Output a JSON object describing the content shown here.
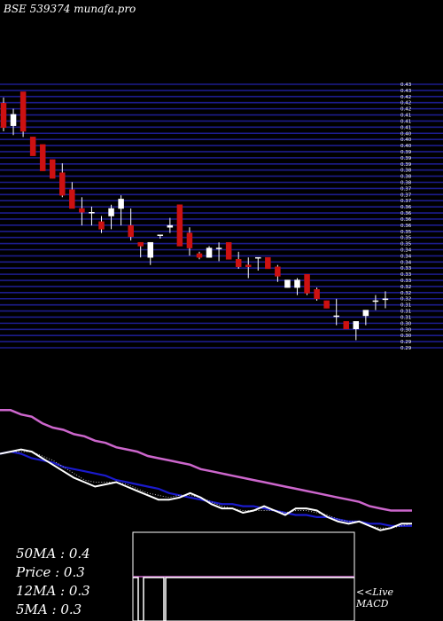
{
  "header": {
    "title": "BSE 539374  munafa.pro"
  },
  "stats": {
    "ma50": "50MA : 0.4",
    "price": "Price   : 0.3",
    "ma12": "12MA : 0.3",
    "ma5": "5MA : 0.3"
  },
  "macd_label": {
    "line1": "<<Live",
    "line2": "MACD"
  },
  "colors": {
    "background": "#000000",
    "gridline": "#1c1c8c",
    "up_candle": "#ffffff",
    "down_candle": "#cc1111",
    "ma_long": "#cc66cc",
    "ma_mid": "#1a1acc",
    "ma_short": "#ffffff"
  },
  "chart_data": {
    "type": "candlestick",
    "title": "BSE 539374",
    "price_range": [
      0.29,
      0.43
    ],
    "candles": [
      {
        "o": 0.42,
        "h": 0.423,
        "l": 0.405,
        "c": 0.407
      },
      {
        "o": 0.408,
        "h": 0.417,
        "l": 0.403,
        "c": 0.414
      },
      {
        "o": 0.426,
        "h": 0.426,
        "l": 0.402,
        "c": 0.405
      },
      {
        "o": 0.402,
        "h": 0.402,
        "l": 0.392,
        "c": 0.392
      },
      {
        "o": 0.398,
        "h": 0.398,
        "l": 0.384,
        "c": 0.384
      },
      {
        "o": 0.39,
        "h": 0.39,
        "l": 0.38,
        "c": 0.38
      },
      {
        "o": 0.383,
        "h": 0.388,
        "l": 0.37,
        "c": 0.371
      },
      {
        "o": 0.374,
        "h": 0.378,
        "l": 0.364,
        "c": 0.364
      },
      {
        "o": 0.364,
        "h": 0.37,
        "l": 0.355,
        "c": 0.362
      },
      {
        "o": 0.362,
        "h": 0.365,
        "l": 0.355,
        "c": 0.362
      },
      {
        "o": 0.357,
        "h": 0.36,
        "l": 0.351,
        "c": 0.353
      },
      {
        "o": 0.36,
        "h": 0.366,
        "l": 0.353,
        "c": 0.364
      },
      {
        "o": 0.364,
        "h": 0.371,
        "l": 0.355,
        "c": 0.369
      },
      {
        "o": 0.355,
        "h": 0.364,
        "l": 0.347,
        "c": 0.349
      },
      {
        "o": 0.346,
        "h": 0.346,
        "l": 0.338,
        "c": 0.344
      },
      {
        "o": 0.338,
        "h": 0.346,
        "l": 0.334,
        "c": 0.346
      },
      {
        "o": 0.35,
        "h": 0.35,
        "l": 0.348,
        "c": 0.35
      },
      {
        "o": 0.354,
        "h": 0.359,
        "l": 0.351,
        "c": 0.355
      },
      {
        "o": 0.366,
        "h": 0.366,
        "l": 0.344,
        "c": 0.344
      },
      {
        "o": 0.351,
        "h": 0.354,
        "l": 0.339,
        "c": 0.343
      },
      {
        "o": 0.34,
        "h": 0.341,
        "l": 0.337,
        "c": 0.338
      },
      {
        "o": 0.338,
        "h": 0.344,
        "l": 0.338,
        "c": 0.343
      },
      {
        "o": 0.343,
        "h": 0.346,
        "l": 0.336,
        "c": 0.343
      },
      {
        "o": 0.346,
        "h": 0.346,
        "l": 0.337,
        "c": 0.337
      },
      {
        "o": 0.337,
        "h": 0.341,
        "l": 0.332,
        "c": 0.333
      },
      {
        "o": 0.334,
        "h": 0.338,
        "l": 0.327,
        "c": 0.333
      },
      {
        "o": 0.338,
        "h": 0.338,
        "l": 0.331,
        "c": 0.338
      },
      {
        "o": 0.338,
        "h": 0.338,
        "l": 0.332,
        "c": 0.332
      },
      {
        "o": 0.333,
        "h": 0.334,
        "l": 0.325,
        "c": 0.328
      },
      {
        "o": 0.322,
        "h": 0.326,
        "l": 0.322,
        "c": 0.326
      },
      {
        "o": 0.322,
        "h": 0.327,
        "l": 0.318,
        "c": 0.326
      },
      {
        "o": 0.329,
        "h": 0.329,
        "l": 0.318,
        "c": 0.319
      },
      {
        "o": 0.321,
        "h": 0.322,
        "l": 0.315,
        "c": 0.316
      },
      {
        "o": 0.315,
        "h": 0.315,
        "l": 0.311,
        "c": 0.311
      },
      {
        "o": 0.307,
        "h": 0.316,
        "l": 0.302,
        "c": 0.307
      },
      {
        "o": 0.304,
        "h": 0.304,
        "l": 0.3,
        "c": 0.3
      },
      {
        "o": 0.3,
        "h": 0.304,
        "l": 0.294,
        "c": 0.304
      },
      {
        "o": 0.307,
        "h": 0.31,
        "l": 0.302,
        "c": 0.31
      },
      {
        "o": 0.315,
        "h": 0.318,
        "l": 0.31,
        "c": 0.315
      },
      {
        "o": 0.316,
        "h": 0.32,
        "l": 0.311,
        "c": 0.316
      }
    ],
    "ma_long": [
      0.305,
      0.305,
      0.303,
      0.302,
      0.299,
      0.297,
      0.296,
      0.294,
      0.293,
      0.291,
      0.29,
      0.288,
      0.287,
      0.286,
      0.284,
      0.283,
      0.282,
      0.281,
      0.28,
      0.278,
      0.277,
      0.276,
      0.275,
      0.274,
      0.273,
      0.272,
      0.271,
      0.27,
      0.269,
      0.268,
      0.267,
      0.266,
      0.265,
      0.264,
      0.263,
      0.261,
      0.26,
      0.259,
      0.259,
      0.259
    ],
    "ma_mid": [
      0.285,
      0.286,
      0.285,
      0.283,
      0.282,
      0.281,
      0.279,
      0.278,
      0.277,
      0.276,
      0.275,
      0.273,
      0.272,
      0.271,
      0.27,
      0.269,
      0.267,
      0.266,
      0.265,
      0.264,
      0.263,
      0.262,
      0.262,
      0.261,
      0.261,
      0.26,
      0.259,
      0.258,
      0.257,
      0.257,
      0.256,
      0.256,
      0.255,
      0.254,
      0.254,
      0.253,
      0.253,
      0.252,
      0.252,
      0.252
    ],
    "ma_short": [
      0.285,
      0.286,
      0.287,
      0.286,
      0.283,
      0.28,
      0.277,
      0.274,
      0.272,
      0.27,
      0.271,
      0.272,
      0.27,
      0.268,
      0.266,
      0.264,
      0.264,
      0.265,
      0.267,
      0.265,
      0.262,
      0.26,
      0.26,
      0.258,
      0.259,
      0.261,
      0.259,
      0.257,
      0.26,
      0.26,
      0.259,
      0.256,
      0.254,
      0.253,
      0.254,
      0.252,
      0.25,
      0.251,
      0.253,
      0.253
    ],
    "ma_short_dotted": [
      0.285,
      0.286,
      0.286,
      0.286,
      0.284,
      0.282,
      0.279,
      0.276,
      0.273,
      0.272,
      0.272,
      0.272,
      0.271,
      0.269,
      0.267,
      0.266,
      0.265,
      0.266,
      0.266,
      0.265,
      0.263,
      0.261,
      0.26,
      0.259,
      0.259,
      0.259,
      0.259,
      0.258,
      0.259,
      0.259,
      0.258,
      0.257,
      0.255,
      0.254,
      0.254,
      0.252,
      0.251,
      0.251,
      0.252,
      0.253
    ],
    "macd_signal": [
      {
        "pos": 0.0,
        "level": 0.0
      },
      {
        "pos": 0.03,
        "level": 0.25
      },
      {
        "pos": 0.05,
        "level": 1.0
      },
      {
        "pos": 0.1,
        "level": 1.0
      },
      {
        "pos": 0.12,
        "level": 0.25
      },
      {
        "pos": 0.4,
        "level": 0.25
      },
      {
        "pos": 1.0,
        "level": 0.25
      }
    ]
  }
}
